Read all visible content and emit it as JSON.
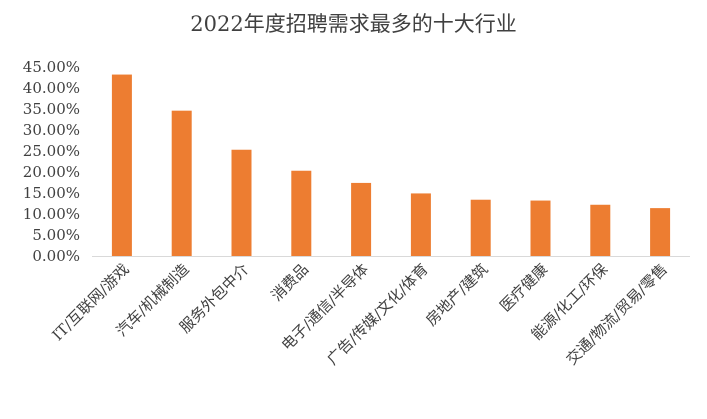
{
  "chart_data": {
    "type": "bar",
    "title": "2022年度招聘需求最多的十大行业",
    "categories": [
      "IT/互联网/游戏",
      "汽车/机械制造",
      "服务外包中介",
      "消费品",
      "电子/通信/半导体",
      "广告/传媒/文化/体育",
      "房地产/建筑",
      "医疗健康",
      "能源/化工/环保",
      "交通/物流/贸易/零售"
    ],
    "values": [
      43.2,
      34.6,
      25.3,
      20.3,
      17.4,
      14.9,
      13.4,
      13.2,
      12.2,
      11.4
    ],
    "ylim": [
      0,
      45
    ],
    "yticks": [
      "0.00%",
      "5.00%",
      "10.00%",
      "15.00%",
      "20.00%",
      "25.00%",
      "30.00%",
      "35.00%",
      "40.00%",
      "45.00%"
    ],
    "xlabel": "",
    "ylabel": "",
    "grid": false,
    "colors": {
      "bar": "#ED7D31",
      "axis": "#D9D9D9",
      "text": "#404040"
    }
  }
}
